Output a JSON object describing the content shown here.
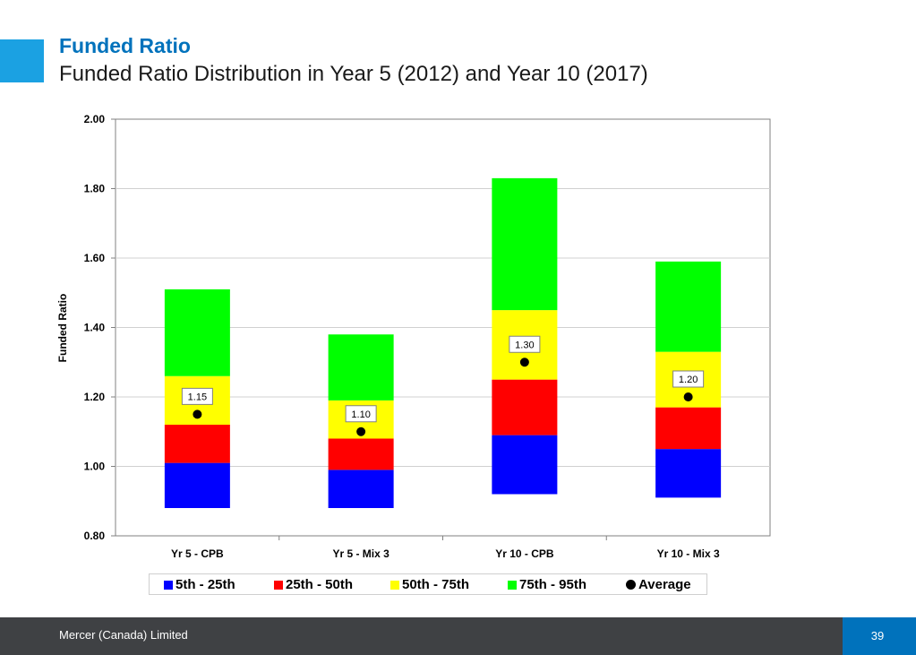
{
  "header": {
    "title": "Funded Ratio",
    "subtitle": "Funded Ratio Distribution in Year 5 (2012) and Year 10 (2017)"
  },
  "footer": {
    "company": "Mercer (Canada) Limited",
    "page_number": "39"
  },
  "chart_data": {
    "type": "bar",
    "stacked": true,
    "ylabel": "Funded Ratio",
    "xlabel": "",
    "ylim": [
      0.8,
      2.0
    ],
    "y_ticks": [
      "0.80",
      "1.00",
      "1.20",
      "1.40",
      "1.60",
      "1.80",
      "2.00"
    ],
    "categories": [
      "Yr 5 - CPB",
      "Yr 5 - Mix 3",
      "Yr 10 - CPB",
      "Yr 10 - Mix 3"
    ],
    "percentiles": {
      "p5": [
        0.88,
        0.88,
        0.92,
        0.91
      ],
      "p25": [
        1.01,
        0.99,
        1.09,
        1.05
      ],
      "p50": [
        1.12,
        1.08,
        1.25,
        1.17
      ],
      "p75": [
        1.26,
        1.19,
        1.45,
        1.33
      ],
      "p95": [
        1.51,
        1.38,
        1.83,
        1.59
      ]
    },
    "series": [
      {
        "name": "5th - 25th",
        "color": "#0000ff"
      },
      {
        "name": "25th - 50th",
        "color": "#ff0000"
      },
      {
        "name": "50th - 75th",
        "color": "#ffff00"
      },
      {
        "name": "75th - 95th",
        "color": "#00ff00"
      }
    ],
    "average": {
      "name": "Average",
      "values": [
        1.15,
        1.1,
        1.3,
        1.2
      ],
      "labels": [
        "1.15",
        "1.10",
        "1.30",
        "1.20"
      ],
      "color": "#000000"
    },
    "grid": true,
    "legend_position": "bottom"
  }
}
